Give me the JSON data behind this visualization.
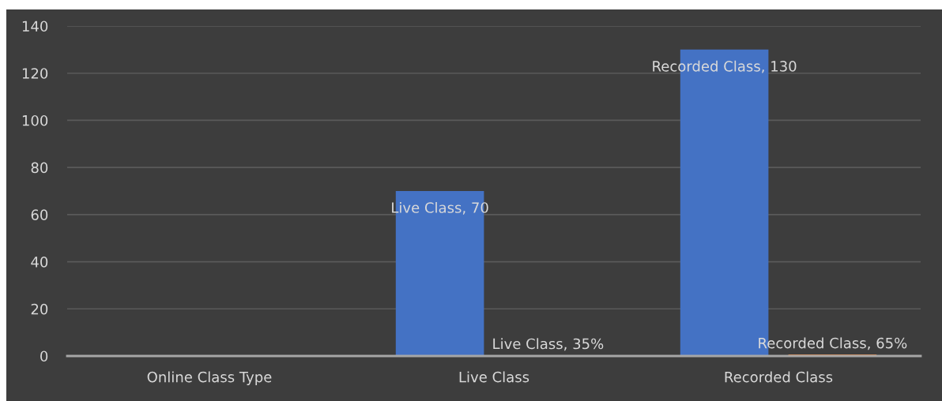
{
  "chart_data": {
    "type": "bar",
    "categories": [
      "Online Class Type",
      "Live Class",
      "Recorded Class"
    ],
    "series": [
      {
        "color": "#4472c4",
        "values": [
          null,
          70,
          130
        ],
        "value_labels": [
          null,
          "Live Class, 70",
          "Recorded Class, 130"
        ]
      },
      {
        "color": "#ed7d31",
        "values": [
          null,
          0.35,
          0.65
        ],
        "value_labels": [
          null,
          "Live Class, 35%",
          "Recorded Class, 65%"
        ]
      }
    ],
    "ylim": [
      0,
      140
    ],
    "yticks": [
      0,
      20,
      40,
      60,
      80,
      100,
      120,
      140
    ],
    "grid": "y"
  }
}
